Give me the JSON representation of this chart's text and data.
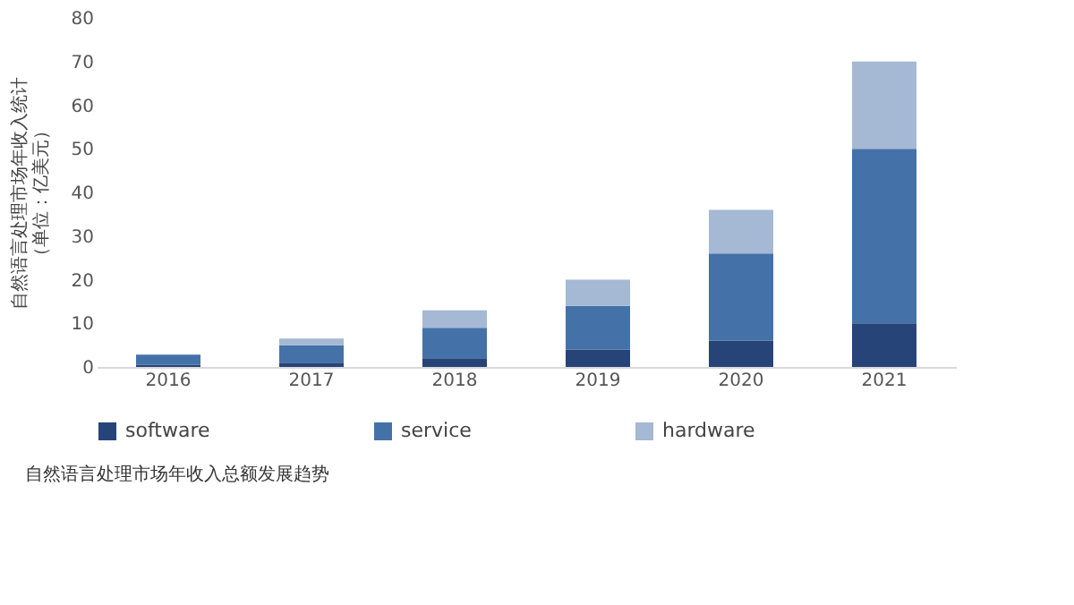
{
  "chart_data": {
    "type": "bar",
    "stacked": true,
    "categories": [
      "2016",
      "2017",
      "2018",
      "2019",
      "2020",
      "2021"
    ],
    "series": [
      {
        "name": "software",
        "color": "#264478",
        "values": [
          0.5,
          1,
          2,
          4,
          6,
          10
        ]
      },
      {
        "name": "service",
        "color": "#4472a8",
        "values": [
          2.3,
          4,
          7,
          10,
          20,
          40
        ]
      },
      {
        "name": "hardware",
        "color": "#a5b8d4",
        "values": [
          0,
          1.5,
          4,
          6,
          10,
          20
        ]
      }
    ],
    "ylabel": "自然语言处理市场年收入统计（单位：亿美元）",
    "ylim": [
      0,
      80
    ],
    "yticks": [
      0,
      10,
      20,
      30,
      40,
      50,
      60,
      70,
      80
    ],
    "grid": false,
    "legend": "bottom",
    "annotations": [
      "自然语言处理市场年收入总额发展趋势"
    ]
  }
}
